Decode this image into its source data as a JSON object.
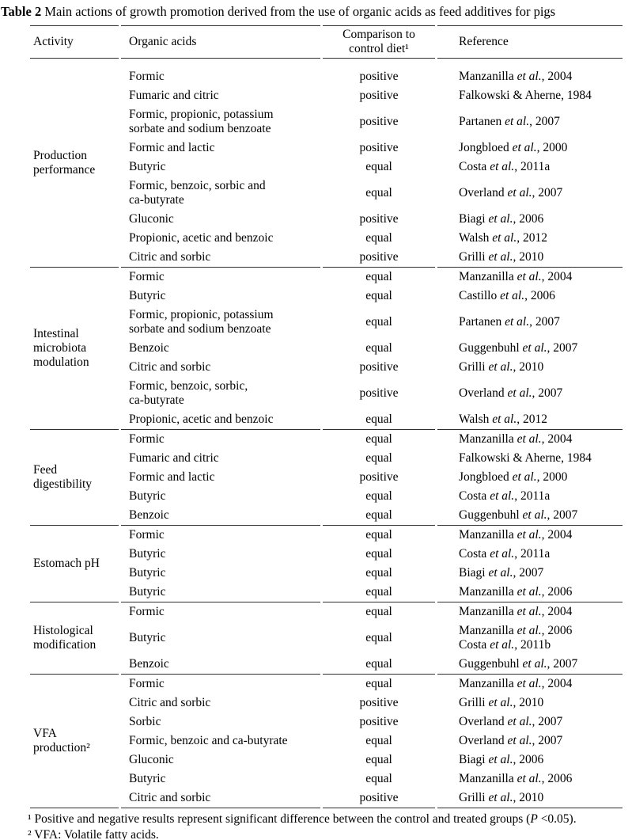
{
  "title": {
    "prefix": "Table 2",
    "text": " Main actions of growth promotion derived from the use of organic acids as feed additives for pigs"
  },
  "table": {
    "headers": {
      "activity": "Activity",
      "acids": "Organic acids",
      "comparison": "Comparison to\ncontrol diet¹",
      "reference": "Reference"
    },
    "sections": [
      {
        "activity": "Production\nperformance",
        "rows": [
          {
            "acids": "Formic",
            "comparison": "positive",
            "refs": [
              {
                "pre": "Manzanilla ",
                "italic": "et al.",
                "post": ", 2004"
              }
            ]
          },
          {
            "acids": "Fumaric and citric",
            "comparison": "positive",
            "refs": [
              {
                "pre": "Falkowski & Aherne, 1984",
                "italic": "",
                "post": ""
              }
            ]
          },
          {
            "acids": "Formic, propionic, potassium\nsorbate and sodium benzoate",
            "comparison": "positive",
            "refs": [
              {
                "pre": "Partanen ",
                "italic": "et al.",
                "post": ", 2007"
              }
            ]
          },
          {
            "acids": "Formic and lactic",
            "comparison": "positive",
            "refs": [
              {
                "pre": "Jongbloed ",
                "italic": "et al.",
                "post": ", 2000"
              }
            ]
          },
          {
            "acids": "Butyric",
            "comparison": "equal",
            "refs": [
              {
                "pre": "Costa ",
                "italic": "et al.",
                "post": ", 2011a"
              }
            ]
          },
          {
            "acids": "Formic, benzoic, sorbic and\nca-butyrate",
            "comparison": "equal",
            "refs": [
              {
                "pre": "Overland ",
                "italic": "et al.",
                "post": ", 2007"
              }
            ]
          },
          {
            "acids": "Gluconic",
            "comparison": "positive",
            "refs": [
              {
                "pre": "Biagi ",
                "italic": "et al.",
                "post": ", 2006"
              }
            ]
          },
          {
            "acids": "Propionic, acetic and benzoic",
            "comparison": "equal",
            "refs": [
              {
                "pre": "Walsh ",
                "italic": "et al.",
                "post": ", 2012"
              }
            ]
          },
          {
            "acids": "Citric and sorbic",
            "comparison": "positive",
            "refs": [
              {
                "pre": "Grilli ",
                "italic": "et al.",
                "post": ", 2010"
              }
            ]
          }
        ]
      },
      {
        "activity": "Intestinal\nmicrobiota\nmodulation",
        "rows": [
          {
            "acids": "Formic",
            "comparison": "equal",
            "refs": [
              {
                "pre": "Manzanilla ",
                "italic": "et al.",
                "post": ", 2004"
              }
            ]
          },
          {
            "acids": "Butyric",
            "comparison": "equal",
            "refs": [
              {
                "pre": "Castillo ",
                "italic": "et al.",
                "post": ", 2006"
              }
            ]
          },
          {
            "acids": "Formic, propionic, potassium\nsorbate and sodium benzoate",
            "comparison": "equal",
            "refs": [
              {
                "pre": "Partanen ",
                "italic": "et al.",
                "post": ", 2007"
              }
            ]
          },
          {
            "acids": "Benzoic",
            "comparison": "equal",
            "refs": [
              {
                "pre": "Guggenbuhl ",
                "italic": "et al.",
                "post": ", 2007"
              }
            ]
          },
          {
            "acids": "Citric and sorbic",
            "comparison": "positive",
            "refs": [
              {
                "pre": "Grilli ",
                "italic": "et al.",
                "post": ", 2010"
              }
            ]
          },
          {
            "acids": "Formic, benzoic, sorbic,\nca-butyrate",
            "comparison": "positive",
            "refs": [
              {
                "pre": "Overland ",
                "italic": "et al.",
                "post": ", 2007"
              }
            ]
          },
          {
            "acids": "Propionic, acetic and benzoic",
            "comparison": "equal",
            "refs": [
              {
                "pre": "Walsh ",
                "italic": "et al.",
                "post": ", 2012"
              }
            ]
          }
        ]
      },
      {
        "activity": "Feed\ndigestibility",
        "rows": [
          {
            "acids": "Formic",
            "comparison": "equal",
            "refs": [
              {
                "pre": "Manzanilla ",
                "italic": "et al.",
                "post": ", 2004"
              }
            ]
          },
          {
            "acids": "Fumaric and citric",
            "comparison": "equal",
            "refs": [
              {
                "pre": "Falkowski & Aherne, 1984",
                "italic": "",
                "post": ""
              }
            ]
          },
          {
            "acids": "Formic and lactic",
            "comparison": "positive",
            "refs": [
              {
                "pre": "Jongbloed ",
                "italic": "et al.",
                "post": ", 2000"
              }
            ]
          },
          {
            "acids": "Butyric",
            "comparison": "equal",
            "refs": [
              {
                "pre": "Costa ",
                "italic": "et al.",
                "post": ", 2011a"
              }
            ]
          },
          {
            "acids": "Benzoic",
            "comparison": "equal",
            "refs": [
              {
                "pre": "Guggenbuhl ",
                "italic": "et al.",
                "post": ", 2007"
              }
            ]
          }
        ]
      },
      {
        "activity": "Estomach pH",
        "rows": [
          {
            "acids": "Formic",
            "comparison": "equal",
            "refs": [
              {
                "pre": "Manzanilla ",
                "italic": "et al.",
                "post": ", 2004"
              }
            ]
          },
          {
            "acids": "Butyric",
            "comparison": "equal",
            "refs": [
              {
                "pre": "Costa ",
                "italic": "et al.",
                "post": ", 2011a"
              }
            ]
          },
          {
            "acids": "Butyric",
            "comparison": "equal",
            "refs": [
              {
                "pre": "Biagi ",
                "italic": "et al.",
                "post": ", 2007"
              }
            ]
          },
          {
            "acids": "Butyric",
            "comparison": "equal",
            "refs": [
              {
                "pre": "Manzanilla ",
                "italic": "et al.",
                "post": ", 2006"
              }
            ]
          }
        ]
      },
      {
        "activity": "Histological\nmodification",
        "rows": [
          {
            "acids": "Formic",
            "comparison": "equal",
            "refs": [
              {
                "pre": "Manzanilla ",
                "italic": "et al.",
                "post": ", 2004"
              }
            ]
          },
          {
            "acids": "Butyric",
            "comparison": "equal",
            "refs": [
              {
                "pre": "Manzanilla ",
                "italic": "et al.",
                "post": ", 2006"
              },
              {
                "pre": "Costa ",
                "italic": "et al.",
                "post": ", 2011b"
              }
            ]
          },
          {
            "acids": "Benzoic",
            "comparison": "equal",
            "refs": [
              {
                "pre": "Guggenbuhl ",
                "italic": "et al.",
                "post": ", 2007"
              }
            ]
          }
        ]
      },
      {
        "activity": "VFA\nproduction²",
        "rows": [
          {
            "acids": "Formic",
            "comparison": "equal",
            "refs": [
              {
                "pre": "Manzanilla ",
                "italic": "et al.",
                "post": ", 2004"
              }
            ]
          },
          {
            "acids": "Citric and sorbic",
            "comparison": "positive",
            "refs": [
              {
                "pre": "Grilli ",
                "italic": "et al.",
                "post": ", 2010"
              }
            ]
          },
          {
            "acids": "Sorbic",
            "comparison": "positive",
            "refs": [
              {
                "pre": "Overland ",
                "italic": "et al.",
                "post": ", 2007"
              }
            ]
          },
          {
            "acids": "Formic, benzoic and ca-butyrate",
            "comparison": "equal",
            "refs": [
              {
                "pre": "Overland ",
                "italic": "et al.",
                "post": ", 2007"
              }
            ]
          },
          {
            "acids": "Gluconic",
            "comparison": "equal",
            "refs": [
              {
                "pre": "Biagi ",
                "italic": "et al.",
                "post": ", 2006"
              }
            ]
          },
          {
            "acids": "Butyric",
            "comparison": "equal",
            "refs": [
              {
                "pre": "Manzanilla ",
                "italic": "et al.",
                "post": ", 2006"
              }
            ]
          },
          {
            "acids": "Citric and sorbic",
            "comparison": "positive",
            "refs": [
              {
                "pre": "Grilli ",
                "italic": "et al.",
                "post": ", 2010"
              }
            ]
          }
        ]
      }
    ]
  },
  "footnotes": [
    {
      "pre": "¹ Positive and negative results represent significant difference between the control and treated groups (",
      "italic": "P",
      "post": " <0.05)."
    },
    {
      "pre": "² VFA: Volatile fatty acids.",
      "italic": "",
      "post": ""
    }
  ]
}
